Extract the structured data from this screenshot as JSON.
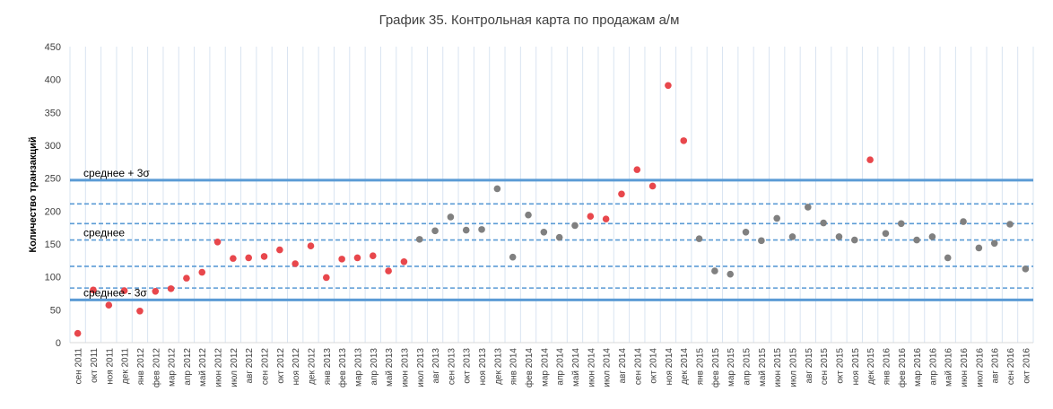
{
  "chart_data": {
    "type": "scatter",
    "title": "График 35. Контрольная карта по продажам а/м",
    "ylabel": "Количество транзакций",
    "xlabel": "",
    "ylim": [
      0,
      450
    ],
    "yticks": [
      0,
      50,
      100,
      150,
      200,
      250,
      300,
      350,
      400,
      450
    ],
    "grid": "vertical",
    "legend": "none",
    "colors": {
      "phase_1": "#e8474c",
      "phase_2": "#808080",
      "limit_line": "#5b9bd5",
      "grid": "#d9e4f1"
    },
    "categories": [
      "сен 2011",
      "окт 2011",
      "ноя 2011",
      "дек 2011",
      "янв 2012",
      "фев 2012",
      "мар 2012",
      "апр 2012",
      "май 2012",
      "июн 2012",
      "июл 2012",
      "авг 2012",
      "сен 2012",
      "окт 2012",
      "ноя 2012",
      "дек 2012",
      "янв 2013",
      "фев 2013",
      "мар 2013",
      "апр 2013",
      "май 2013",
      "июн 2013",
      "июл 2013",
      "авг 2013",
      "сен 2013",
      "окт 2013",
      "ноя 2013",
      "дек 2013",
      "янв 2014",
      "фев 2014",
      "мар 2014",
      "апр 2014",
      "май 2014",
      "июн 2014",
      "июл 2014",
      "авг 2014",
      "сен 2014",
      "окт 2014",
      "ноя 2014",
      "дек 2014",
      "янв 2015",
      "фев 2015",
      "мар 2015",
      "апр 2015",
      "май 2015",
      "июн 2015",
      "июл 2015",
      "авг 2015",
      "сен 2015",
      "окт 2015",
      "ноя 2015",
      "дек 2015",
      "янв 2016",
      "фев 2016",
      "мар 2016",
      "апр 2016",
      "май 2016",
      "июн 2016",
      "июл 2016",
      "авг 2016",
      "сен 2016",
      "окт 2016"
    ],
    "values": [
      14,
      80,
      57,
      79,
      48,
      78,
      82,
      98,
      107,
      153,
      128,
      129,
      131,
      141,
      120,
      147,
      99,
      127,
      129,
      132,
      109,
      123,
      157,
      170,
      191,
      171,
      172,
      234,
      130,
      194,
      168,
      160,
      178,
      192,
      188,
      226,
      263,
      238,
      391,
      307,
      158,
      109,
      104,
      168,
      155,
      189,
      161,
      206,
      182,
      161,
      156,
      278,
      166,
      181,
      156,
      161,
      129,
      184,
      144,
      151,
      180,
      112
    ],
    "point_colors": [
      "phase_1",
      "phase_1",
      "phase_1",
      "phase_1",
      "phase_1",
      "phase_1",
      "phase_1",
      "phase_1",
      "phase_1",
      "phase_1",
      "phase_1",
      "phase_1",
      "phase_1",
      "phase_1",
      "phase_1",
      "phase_1",
      "phase_1",
      "phase_1",
      "phase_1",
      "phase_1",
      "phase_1",
      "phase_1",
      "phase_2",
      "phase_2",
      "phase_2",
      "phase_2",
      "phase_2",
      "phase_2",
      "phase_2",
      "phase_2",
      "phase_2",
      "phase_2",
      "phase_2",
      "phase_1",
      "phase_1",
      "phase_1",
      "phase_1",
      "phase_1",
      "phase_1",
      "phase_1",
      "phase_2",
      "phase_2",
      "phase_2",
      "phase_2",
      "phase_2",
      "phase_2",
      "phase_2",
      "phase_2",
      "phase_2",
      "phase_2",
      "phase_2",
      "phase_1",
      "phase_2",
      "phase_2",
      "phase_2",
      "phase_2",
      "phase_2",
      "phase_2",
      "phase_2",
      "phase_2",
      "phase_2",
      "phase_2"
    ],
    "reference_lines": [
      {
        "value": 247,
        "style": "solid",
        "label": "среднее + 3σ"
      },
      {
        "value": 211,
        "style": "dashed",
        "label": ""
      },
      {
        "value": 181,
        "style": "dashed",
        "label": ""
      },
      {
        "value": 156,
        "style": "dashed",
        "label": "среднее"
      },
      {
        "value": 116,
        "style": "dashed",
        "label": ""
      },
      {
        "value": 83,
        "style": "dashed",
        "label": ""
      },
      {
        "value": 65,
        "style": "solid",
        "label": "среднее - 3σ"
      }
    ]
  }
}
